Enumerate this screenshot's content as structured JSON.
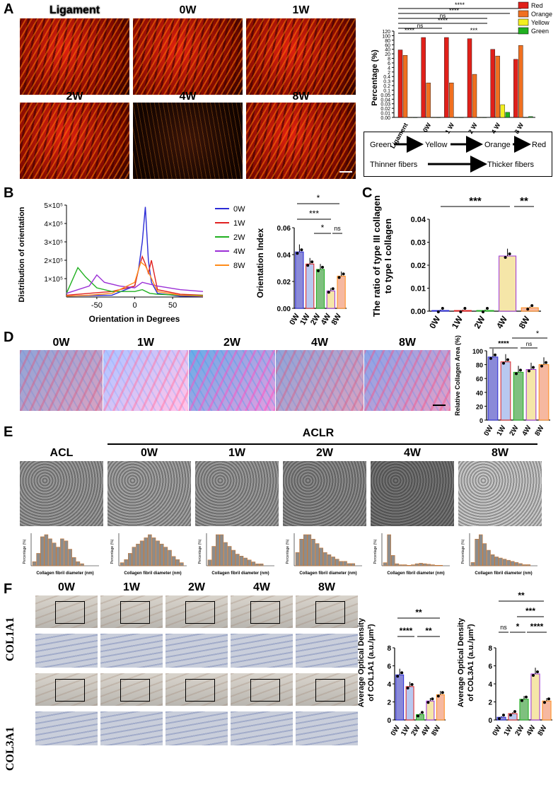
{
  "panels": {
    "A": "A",
    "B": "B",
    "C": "C",
    "D": "D",
    "E": "E",
    "F": "F"
  },
  "panelA": {
    "image_labels": [
      "Ligament",
      "0W",
      "1W",
      "2W",
      "4W",
      "8W"
    ],
    "legend": [
      "Red",
      "Orange",
      "Yellow",
      "Green"
    ],
    "ylabel": "Percentage (%)",
    "xcats": [
      "Ligament",
      "0W",
      "1 W",
      "2 W",
      "4 W",
      "8 W"
    ],
    "yticks": [
      "120",
      "100",
      "80",
      "60",
      "40",
      "20",
      "8",
      "6",
      "4",
      "2",
      "0.4",
      "0.3",
      "0.2",
      "0.1",
      "0.05",
      "0.04",
      "0.03",
      "0.02",
      "0.01",
      "0.00"
    ],
    "sig": [
      "****",
      "****",
      "ns",
      "****",
      "ns",
      "****",
      "***"
    ],
    "scheme_row1": [
      "Green",
      "Yellow",
      "Orange",
      "Red"
    ],
    "scheme_row2": [
      "Thinner fibers",
      "Thicker fibers"
    ]
  },
  "panelB": {
    "ylabel": "Distribution of orientation",
    "xlabel": "Orientation in Degrees",
    "yticks": [
      "5×10⁵",
      "4×10⁵",
      "3×10⁵",
      "2×10⁵",
      "1×10⁵"
    ],
    "xticks": [
      "-50",
      "0",
      "50"
    ],
    "legend": [
      "0W",
      "1W",
      "2W",
      "4W",
      "8W"
    ],
    "bar_ylabel": "Orientation Index",
    "bar_yticks": [
      "0.06",
      "0.04",
      "0.02",
      "0.00"
    ],
    "bar_cats": [
      "0W",
      "1W",
      "2W",
      "4W",
      "8W"
    ],
    "sig": [
      "*",
      "***",
      "*",
      "ns"
    ]
  },
  "panelC": {
    "ylabel1": "The ratio of type III collagen",
    "ylabel2": "to type I collagen",
    "yticks": [
      "0.04",
      "0.03",
      "0.02",
      "0.01",
      "0.00"
    ],
    "cats": [
      "0W",
      "1W",
      "2W",
      "4W",
      "8W"
    ],
    "sig": [
      "***",
      "**"
    ]
  },
  "panelD": {
    "image_labels": [
      "0W",
      "1W",
      "2W",
      "4W",
      "8W"
    ],
    "ylabel": "Relative Collagen Area (%)",
    "yticks": [
      "100",
      "80",
      "60",
      "40",
      "20",
      "0"
    ],
    "cats": [
      "0W",
      "1W",
      "2W",
      "4W",
      "8W"
    ],
    "sig": [
      "****",
      "ns",
      "*"
    ]
  },
  "panelE": {
    "aclr": "ACLR",
    "image_labels": [
      "ACL",
      "0W",
      "1W",
      "2W",
      "4W",
      "8W"
    ],
    "hist_xlabel": "Collagen fibril diameter (nm)",
    "hist_ylabel": "Percentage (%)"
  },
  "panelF": {
    "col_labels": [
      "0W",
      "1W",
      "2W",
      "4W",
      "8W"
    ],
    "row_labels": [
      "COL1A1",
      "COL3A1"
    ],
    "chart1_ylabel1": "Average Optical Density",
    "chart1_ylabel2": "of COL1A1 (a.u./μm²)",
    "chart1_yticks": [
      "8",
      "6",
      "4",
      "2",
      "0"
    ],
    "chart1_sig": [
      "**",
      "****",
      "**"
    ],
    "chart2_ylabel1": "Average Optical Density",
    "chart2_ylabel2": "of COL3A1 (a.u./μm²)",
    "chart2_yticks": [
      "8",
      "6",
      "4",
      "2",
      "0"
    ],
    "chart2_sig": [
      "**",
      "***",
      "ns",
      "*",
      "****"
    ],
    "cats": [
      "0W",
      "1W",
      "2W",
      "4W",
      "8W"
    ]
  },
  "colors": {
    "w0": "#2b2bd6",
    "w1": "#e02020",
    "w2": "#20b020",
    "w4": "#9b2fd6",
    "w8": "#ff8c1a",
    "red": "#e0201a",
    "orange": "#f07020",
    "yellow": "#f4f020",
    "green": "#20b020"
  },
  "chart_data": [
    {
      "type": "bar",
      "title": "",
      "categories": [
        "Ligament",
        "0W",
        "1 W",
        "2 W",
        "4 W",
        "8 W"
      ],
      "ylabel": "Percentage (%)",
      "series": [
        {
          "name": "Red",
          "values": [
            58,
            99,
            99,
            95,
            60,
            27
          ]
        },
        {
          "name": "Orange",
          "values": [
            40,
            0.3,
            0.3,
            4,
            38,
            73
          ]
        },
        {
          "name": "Yellow",
          "values": [
            0,
            0,
            0,
            0,
            0.015,
            0
          ]
        },
        {
          "name": "Green",
          "values": [
            0,
            0,
            0,
            0,
            0.006,
            0.001
          ]
        }
      ]
    },
    {
      "type": "line",
      "xlabel": "Orientation in Degrees",
      "ylabel": "Distribution of orientation",
      "xlim": [
        -90,
        90
      ],
      "ylim": [
        0,
        500000
      ],
      "series": [
        {
          "name": "0W",
          "x": [
            -90,
            -60,
            -30,
            0,
            5,
            10,
            14,
            18,
            22,
            30,
            60,
            90
          ],
          "y": [
            5000,
            8000,
            10000,
            60000,
            150000,
            300000,
            490000,
            200000,
            80000,
            20000,
            5000,
            3000
          ]
        },
        {
          "name": "1W",
          "x": [
            -90,
            -60,
            -30,
            0,
            5,
            10,
            14,
            18,
            22,
            30,
            60,
            90
          ],
          "y": [
            10000,
            20000,
            30000,
            60000,
            150000,
            220000,
            180000,
            130000,
            200000,
            40000,
            15000,
            10000
          ]
        },
        {
          "name": "2W",
          "x": [
            -90,
            -75,
            -65,
            -50,
            -30,
            0,
            10,
            20,
            30,
            60,
            90
          ],
          "y": [
            20000,
            160000,
            110000,
            50000,
            30000,
            30000,
            40000,
            20000,
            15000,
            10000,
            8000
          ]
        },
        {
          "name": "4W",
          "x": [
            -90,
            -60,
            -50,
            -40,
            -20,
            0,
            10,
            20,
            30,
            60,
            90
          ],
          "y": [
            20000,
            60000,
            120000,
            80000,
            60000,
            50000,
            80000,
            70000,
            60000,
            40000,
            30000
          ]
        },
        {
          "name": "8W",
          "x": [
            -90,
            -60,
            -30,
            0,
            8,
            14,
            20,
            30,
            60,
            90
          ],
          "y": [
            5000,
            10000,
            20000,
            80000,
            190000,
            170000,
            120000,
            30000,
            10000,
            5000
          ]
        }
      ]
    },
    {
      "type": "bar",
      "categories": [
        "0W",
        "1W",
        "2W",
        "4W",
        "8W"
      ],
      "ylabel": "Orientation Index",
      "ylim": [
        0,
        0.06
      ],
      "values": [
        0.042,
        0.033,
        0.029,
        0.013,
        0.024
      ]
    },
    {
      "type": "bar",
      "categories": [
        "0W",
        "1W",
        "2W",
        "4W",
        "8W"
      ],
      "ylabel": "The ratio of type III collagen to type I collagen",
      "ylim": [
        0,
        0.04
      ],
      "values": [
        0.0003,
        0.0003,
        0.0003,
        0.024,
        0.0015
      ]
    },
    {
      "type": "bar",
      "categories": [
        "0W",
        "1W",
        "2W",
        "4W",
        "8W"
      ],
      "ylabel": "Relative Collagen Area (%)",
      "ylim": [
        0,
        100
      ],
      "values": [
        91,
        84,
        69,
        73,
        80
      ]
    },
    {
      "type": "bar",
      "categories": [
        "0W",
        "1W",
        "2W",
        "4W",
        "8W"
      ],
      "ylabel": "Average Optical Density of COL1A1 (a.u./μm²)",
      "ylim": [
        0,
        8
      ],
      "values": [
        5.0,
        3.7,
        0.6,
        2.1,
        2.8
      ]
    },
    {
      "type": "bar",
      "categories": [
        "0W",
        "1W",
        "2W",
        "4W",
        "8W"
      ],
      "ylabel": "Average Optical Density of COL3A1 (a.u./μm²)",
      "ylim": [
        0,
        8
      ],
      "values": [
        0.3,
        0.7,
        2.3,
        5.1,
        2.1
      ]
    }
  ]
}
